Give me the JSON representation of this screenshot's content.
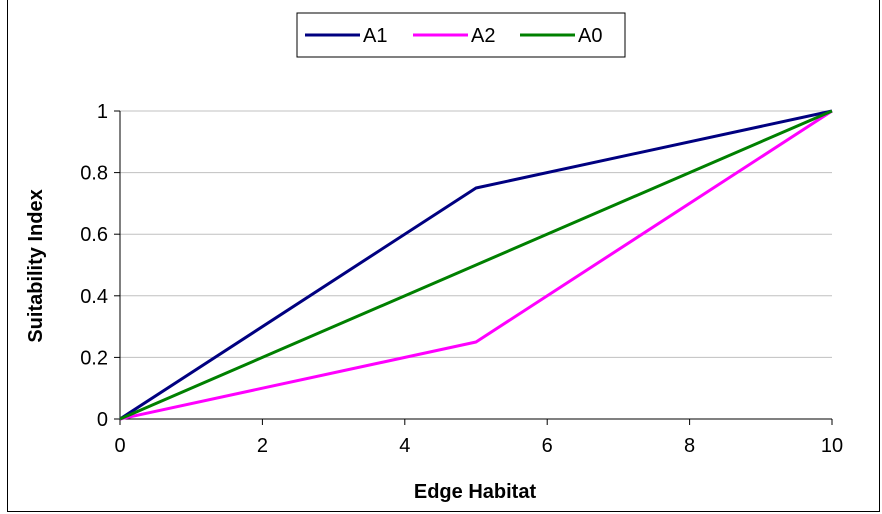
{
  "chart_data": {
    "type": "line",
    "title": "",
    "xlabel": "Edge Habitat",
    "ylabel": "Suitability Index",
    "xlim": [
      0,
      10
    ],
    "ylim": [
      0,
      1
    ],
    "xticks": [
      0,
      2,
      4,
      6,
      8,
      10
    ],
    "yticks": [
      0,
      0.2,
      0.4,
      0.6,
      0.8,
      1
    ],
    "xtick_labels": [
      "0",
      "2",
      "4",
      "6",
      "8",
      "10"
    ],
    "ytick_labels": [
      "0",
      "0.2",
      "0.4",
      "0.6",
      "0.8",
      "1"
    ],
    "grid": "horizontal",
    "legend_position": "top-center",
    "series": [
      {
        "name": "A1",
        "color": "#000080",
        "x": [
          0,
          5,
          10
        ],
        "y": [
          0,
          0.75,
          1
        ]
      },
      {
        "name": "A2",
        "color": "#ff00ff",
        "x": [
          0,
          5,
          10
        ],
        "y": [
          0,
          0.25,
          1
        ]
      },
      {
        "name": "A0",
        "color": "#008000",
        "x": [
          0,
          10
        ],
        "y": [
          0,
          1
        ]
      }
    ]
  }
}
